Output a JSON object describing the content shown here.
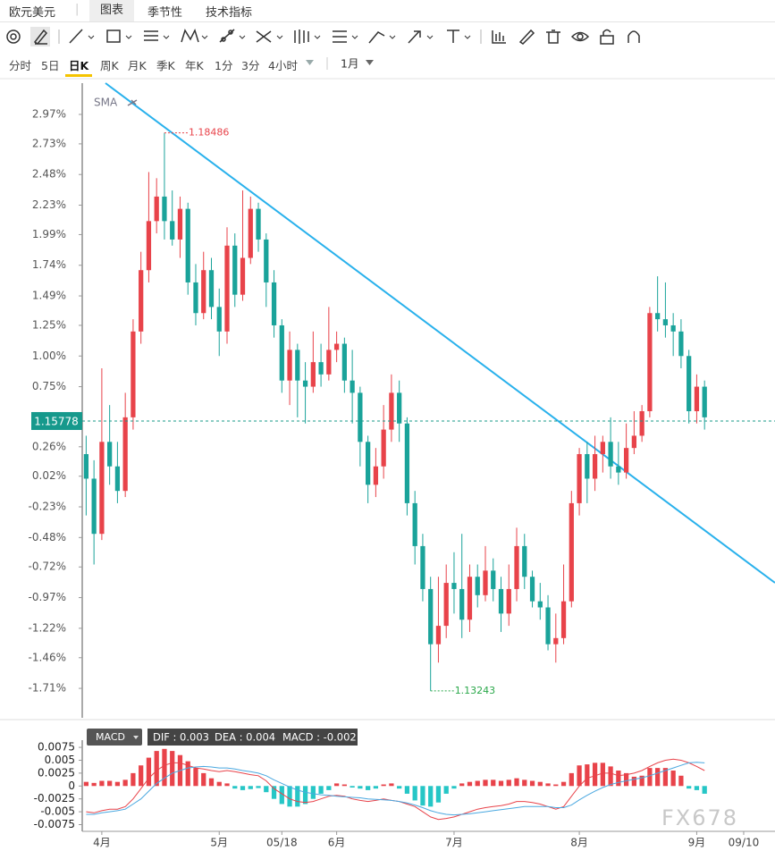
{
  "header": {
    "symbol": "欧元美元",
    "tabs": [
      "图表",
      "季节性",
      "技术指标"
    ]
  },
  "intervals": [
    "分时",
    "5日",
    "日K",
    "周K",
    "月K",
    "季K",
    "年K",
    "1分",
    "3分",
    "4小时"
  ],
  "range": "1月",
  "sma_label": "SMA",
  "watermark": "FX678",
  "chart_data": [
    {
      "type": "candlestick",
      "up_color": "#e8434a",
      "down_color": "#1aa39a",
      "ylim": [
        -1.95,
        3.225
      ],
      "yticks": [
        {
          "value": 2.97,
          "label": "2.97%"
        },
        {
          "value": 2.73,
          "label": "2.73%"
        },
        {
          "value": 2.48,
          "label": "2.48%"
        },
        {
          "value": 2.23,
          "label": "2.23%"
        },
        {
          "value": 1.99,
          "label": "1.99%"
        },
        {
          "value": 1.74,
          "label": "1.74%"
        },
        {
          "value": 1.49,
          "label": "1.49%"
        },
        {
          "value": 1.25,
          "label": "1.25%"
        },
        {
          "value": 1,
          "label": "1.00%"
        },
        {
          "value": 0.75,
          "label": "0.75%"
        },
        {
          "value": 0.26,
          "label": "0.26%"
        },
        {
          "value": 0.02,
          "label": "0.02%"
        },
        {
          "value": -0.23,
          "label": "-0.23%"
        },
        {
          "value": -0.48,
          "label": "-0.48%"
        },
        {
          "value": -0.72,
          "label": "-0.72%"
        },
        {
          "value": -0.97,
          "label": "-0.97%"
        },
        {
          "value": -1.22,
          "label": "-1.22%"
        },
        {
          "value": -1.46,
          "label": "-1.46%"
        },
        {
          "value": -1.71,
          "label": "-1.71%"
        }
      ],
      "current": {
        "value": 0.47,
        "label": "1.15778"
      },
      "max_label": "1.18486",
      "min_label": "1.13243",
      "open": [
        0.2,
        0.0,
        -0.45,
        0.3,
        0.1,
        -0.1,
        0.5,
        1.2,
        1.7,
        2.1,
        2.3,
        2.1,
        1.95,
        2.2,
        1.6,
        1.35,
        1.7,
        1.4,
        1.2,
        1.9,
        1.5,
        1.8,
        2.2,
        1.95,
        1.6,
        1.25,
        0.8,
        1.05,
        0.8,
        0.75,
        0.95,
        0.85,
        1.05,
        1.1,
        0.8,
        0.7,
        0.3,
        -0.05,
        0.1,
        0.4,
        0.7,
        0.45,
        -0.2,
        -0.55,
        -0.9,
        -1.35,
        -1.2,
        -0.85,
        -0.9,
        -1.15,
        -0.8,
        -0.95,
        -0.75,
        -0.9,
        -1.1,
        -0.9,
        -0.55,
        -0.8,
        -1.0,
        -1.05,
        -1.35,
        -1.3,
        -1.0,
        -0.2,
        0.2,
        0.0,
        0.2,
        0.3,
        0.1,
        0.05,
        0.25,
        0.35,
        0.55,
        1.35,
        1.3,
        1.25,
        1.2,
        1.0,
        0.55,
        0.75
      ],
      "high": [
        0.35,
        0.15,
        0.9,
        0.6,
        0.3,
        0.7,
        1.3,
        1.85,
        2.5,
        2.45,
        2.82,
        2.35,
        2.3,
        2.25,
        1.75,
        1.85,
        1.8,
        1.55,
        2.05,
        2.0,
        2.35,
        2.3,
        2.25,
        2.0,
        1.7,
        1.3,
        1.2,
        1.1,
        0.95,
        1.2,
        1.1,
        1.4,
        1.2,
        1.15,
        1.05,
        0.75,
        0.35,
        0.25,
        0.6,
        0.85,
        0.8,
        0.5,
        -0.1,
        -0.45,
        -0.8,
        -0.8,
        -0.7,
        -0.6,
        -0.45,
        -0.7,
        -0.7,
        -0.55,
        -0.65,
        -0.8,
        -0.7,
        -0.4,
        -0.45,
        -0.75,
        -0.85,
        -0.95,
        -1.1,
        -0.7,
        -0.1,
        0.25,
        0.3,
        0.35,
        0.35,
        0.5,
        0.3,
        0.45,
        0.55,
        0.6,
        1.4,
        1.65,
        1.6,
        1.35,
        1.3,
        1.05,
        0.85,
        0.8
      ],
      "low": [
        -0.3,
        -0.7,
        -0.5,
        -0.05,
        -0.2,
        -0.15,
        0.4,
        1.1,
        1.6,
        2.0,
        1.95,
        1.9,
        1.8,
        1.5,
        1.25,
        1.3,
        1.3,
        1.0,
        1.1,
        1.4,
        1.45,
        1.75,
        1.85,
        1.4,
        1.15,
        0.7,
        0.6,
        0.5,
        0.45,
        0.7,
        0.75,
        0.8,
        0.95,
        0.7,
        0.45,
        0.1,
        -0.2,
        -0.15,
        0.0,
        0.3,
        0.3,
        -0.3,
        -0.7,
        -1.0,
        -1.73,
        -1.5,
        -1.3,
        -1.1,
        -1.3,
        -1.25,
        -1.05,
        -1.0,
        -1.0,
        -1.25,
        -1.2,
        -1.0,
        -0.9,
        -1.05,
        -1.15,
        -1.4,
        -1.5,
        -1.35,
        -1.05,
        -0.3,
        -0.2,
        -0.1,
        0.05,
        0.0,
        -0.05,
        0.0,
        0.2,
        0.3,
        0.5,
        1.2,
        1.15,
        1.0,
        0.9,
        0.45,
        0.45,
        0.4
      ],
      "close": [
        0.0,
        -0.45,
        0.3,
        0.1,
        -0.1,
        0.5,
        1.2,
        1.7,
        2.1,
        2.3,
        2.1,
        1.95,
        2.2,
        1.6,
        1.35,
        1.7,
        1.4,
        1.2,
        1.9,
        1.5,
        1.8,
        2.2,
        1.95,
        1.6,
        1.25,
        0.8,
        1.05,
        0.8,
        0.75,
        0.95,
        0.85,
        1.05,
        1.1,
        0.8,
        0.7,
        0.3,
        -0.05,
        0.1,
        0.4,
        0.7,
        0.45,
        -0.2,
        -0.55,
        -0.9,
        -1.35,
        -1.2,
        -0.85,
        -0.9,
        -1.15,
        -0.8,
        -0.95,
        -0.75,
        -0.9,
        -1.1,
        -0.9,
        -0.55,
        -0.8,
        -1.0,
        -1.05,
        -1.35,
        -1.3,
        -1.0,
        -0.2,
        0.2,
        0.0,
        0.2,
        0.3,
        0.1,
        0.05,
        0.25,
        0.35,
        0.55,
        1.35,
        1.3,
        1.25,
        1.2,
        1.0,
        0.55,
        0.75,
        0.5
      ]
    },
    {
      "type": "macd",
      "indicator": "MACD",
      "readout": [
        "DIF : 0.003",
        "DEA : 0.004",
        "MACD : -0.002"
      ],
      "up_color": "#e8434a",
      "down_color": "#26c6c6",
      "ylim": [
        -0.0088,
        0.0089
      ],
      "yticks": [
        0.0075,
        0.005,
        0.0025,
        0,
        -0.0025,
        -0.005,
        -0.0075
      ],
      "xlim": [
        -0.5,
        88
      ],
      "xticks": [
        {
          "value": 2,
          "label": "4月"
        },
        {
          "value": 17,
          "label": "5月"
        },
        {
          "value": 25,
          "label": "05/18"
        },
        {
          "value": 32,
          "label": "6月"
        },
        {
          "value": 47,
          "label": "7月"
        },
        {
          "value": 63,
          "label": "8月"
        },
        {
          "value": 78,
          "label": "9月"
        },
        {
          "value": 84,
          "label": "09/10"
        }
      ],
      "values": [
        0.0008,
        0.0006,
        0.001,
        0.001,
        0.0008,
        0.0012,
        0.0025,
        0.004,
        0.0055,
        0.0068,
        0.0072,
        0.0068,
        0.006,
        0.0048,
        0.0035,
        0.0025,
        0.0015,
        0.0008,
        0.0005,
        -0.0005,
        -0.0008,
        -0.0006,
        -0.0004,
        -0.0012,
        -0.0025,
        -0.0035,
        -0.004,
        -0.004,
        -0.0035,
        -0.0025,
        -0.0015,
        -0.0008,
        0.0005,
        0.0003,
        -0.0003,
        -0.0005,
        -0.0008,
        -0.0005,
        0.0003,
        0.0005,
        -0.0005,
        -0.0015,
        -0.0028,
        -0.0038,
        -0.004,
        -0.0032,
        -0.0015,
        -0.0005,
        0.0005,
        0.0008,
        0.001,
        0.0012,
        0.0012,
        0.001,
        0.0012,
        0.0015,
        0.0012,
        0.001,
        0.0008,
        0.0005,
        0.0003,
        0.0008,
        0.0025,
        0.004,
        0.0042,
        0.0045,
        0.0045,
        0.0038,
        0.003,
        0.0025,
        0.0018,
        0.002,
        0.0035,
        0.0035,
        0.0035,
        0.003,
        0.002,
        -0.0005,
        -0.0008,
        -0.0015
      ],
      "series": [
        {
          "color": "#e8434a",
          "values": [
            -0.005,
            -0.0052,
            -0.0048,
            -0.0045,
            -0.0045,
            -0.004,
            -0.0025,
            -0.0005,
            0.0015,
            0.003,
            0.004,
            0.0045,
            0.0045,
            0.004,
            0.0035,
            0.0033,
            0.003,
            0.0028,
            0.003,
            0.0028,
            0.0025,
            0.0022,
            0.002,
            0.001,
            -0.0005,
            -0.0015,
            -0.0025,
            -0.003,
            -0.0032,
            -0.003,
            -0.0025,
            -0.002,
            -0.0018,
            -0.002,
            -0.0025,
            -0.0028,
            -0.003,
            -0.0028,
            -0.0025,
            -0.0028,
            -0.003,
            -0.0035,
            -0.004,
            -0.005,
            -0.006,
            -0.0065,
            -0.0063,
            -0.006,
            -0.0055,
            -0.005,
            -0.0045,
            -0.0042,
            -0.004,
            -0.0038,
            -0.0035,
            -0.003,
            -0.003,
            -0.0032,
            -0.0035,
            -0.004,
            -0.0045,
            -0.004,
            -0.002,
            0.0,
            0.0015,
            0.002,
            0.0025,
            0.0025,
            0.002,
            0.0022,
            0.0025,
            0.003,
            0.0038,
            0.0045,
            0.005,
            0.0052,
            0.005,
            0.0045,
            0.0038,
            0.003
          ]
        },
        {
          "color": "#4aa8e0",
          "values": [
            -0.0055,
            -0.0055,
            -0.0052,
            -0.005,
            -0.0048,
            -0.0045,
            -0.0035,
            -0.0025,
            -0.001,
            0.0005,
            0.0015,
            0.0025,
            0.003,
            0.0035,
            0.0037,
            0.0038,
            0.0037,
            0.0035,
            0.0035,
            0.0033,
            0.003,
            0.0028,
            0.0025,
            0.002,
            0.0012,
            0.0005,
            -0.0002,
            -0.0008,
            -0.0012,
            -0.0015,
            -0.0017,
            -0.0018,
            -0.002,
            -0.0021,
            -0.0022,
            -0.0023,
            -0.0025,
            -0.0026,
            -0.0027,
            -0.0028,
            -0.003,
            -0.0033,
            -0.0037,
            -0.0042,
            -0.0048,
            -0.0052,
            -0.0055,
            -0.0056,
            -0.0055,
            -0.0054,
            -0.0052,
            -0.005,
            -0.0048,
            -0.0046,
            -0.0044,
            -0.0042,
            -0.004,
            -0.004,
            -0.004,
            -0.004,
            -0.0042,
            -0.0042,
            -0.0037,
            -0.0027,
            -0.0018,
            -0.001,
            -0.0003,
            0.0003,
            0.0007,
            0.001,
            0.0013,
            0.0016,
            0.002,
            0.0025,
            0.003,
            0.0035,
            0.004,
            0.0045,
            0.0046,
            0.0045
          ]
        }
      ]
    }
  ]
}
